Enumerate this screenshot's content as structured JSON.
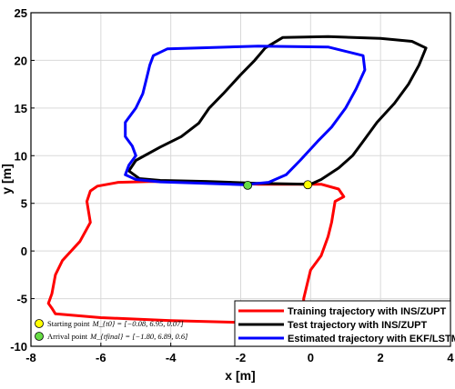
{
  "chart_data": {
    "type": "line",
    "xlabel": "x [m]",
    "ylabel": "y [m]",
    "xlim": [
      -8,
      4
    ],
    "ylim": [
      -10,
      25
    ],
    "xticks": [
      -8,
      -6,
      -4,
      -2,
      0,
      2,
      4
    ],
    "yticks": [
      -10,
      -5,
      0,
      5,
      10,
      15,
      20,
      25
    ],
    "grid": true,
    "legend_position": "bottom-right",
    "series": [
      {
        "name": "Training trajectory with INS/ZUPT",
        "color": "#ff0000",
        "points": [
          [
            0.0,
            7.0
          ],
          [
            -1.5,
            7.0
          ],
          [
            -3.0,
            7.2
          ],
          [
            -4.5,
            7.3
          ],
          [
            -5.5,
            7.2
          ],
          [
            -6.1,
            6.8
          ],
          [
            -6.3,
            6.3
          ],
          [
            -6.4,
            5.2
          ],
          [
            -6.3,
            3.0
          ],
          [
            -6.6,
            1.0
          ],
          [
            -7.1,
            -1.0
          ],
          [
            -7.3,
            -2.5
          ],
          [
            -7.4,
            -4.5
          ],
          [
            -7.5,
            -5.5
          ],
          [
            -7.4,
            -6.0
          ],
          [
            -7.3,
            -6.6
          ],
          [
            -6.0,
            -7.0
          ],
          [
            -4.0,
            -7.3
          ],
          [
            -2.0,
            -7.5
          ],
          [
            -0.3,
            -7.6
          ],
          [
            -0.2,
            -6.5
          ],
          [
            -0.2,
            -5.0
          ],
          [
            -0.1,
            -3.5
          ],
          [
            0.0,
            -2.0
          ],
          [
            0.3,
            -0.5
          ],
          [
            0.4,
            0.5
          ],
          [
            0.5,
            1.5
          ],
          [
            0.6,
            3.0
          ],
          [
            0.7,
            5.2
          ],
          [
            0.95,
            5.7
          ],
          [
            0.8,
            6.5
          ],
          [
            0.3,
            7.0
          ],
          [
            0.0,
            7.0
          ]
        ]
      },
      {
        "name": "Test trajectory with INS/ZUPT",
        "color": "#000000",
        "points": [
          [
            0.0,
            7.0
          ],
          [
            -1.5,
            7.1
          ],
          [
            -3.0,
            7.3
          ],
          [
            -4.3,
            7.4
          ],
          [
            -4.9,
            7.6
          ],
          [
            -5.2,
            8.4
          ],
          [
            -5.0,
            9.5
          ],
          [
            -4.3,
            10.9
          ],
          [
            -3.7,
            12.0
          ],
          [
            -3.2,
            13.4
          ],
          [
            -2.9,
            15.0
          ],
          [
            -2.5,
            16.5
          ],
          [
            -2.0,
            18.5
          ],
          [
            -1.6,
            20.0
          ],
          [
            -1.3,
            21.3
          ],
          [
            -0.8,
            22.4
          ],
          [
            0.5,
            22.5
          ],
          [
            2.0,
            22.3
          ],
          [
            2.9,
            22.0
          ],
          [
            3.3,
            21.3
          ],
          [
            3.1,
            19.5
          ],
          [
            2.8,
            17.5
          ],
          [
            2.4,
            15.5
          ],
          [
            1.9,
            13.5
          ],
          [
            1.5,
            11.5
          ],
          [
            1.2,
            10.0
          ],
          [
            0.8,
            8.7
          ],
          [
            0.3,
            7.5
          ],
          [
            0.0,
            7.0
          ]
        ]
      },
      {
        "name": "Estimated trajectory with EKF/LSTM",
        "color": "#0000ff",
        "points": [
          [
            -1.9,
            6.95
          ],
          [
            -3.0,
            7.1
          ],
          [
            -4.3,
            7.25
          ],
          [
            -5.0,
            7.5
          ],
          [
            -5.3,
            8.0
          ],
          [
            -5.2,
            9.0
          ],
          [
            -5.0,
            10.0
          ],
          [
            -5.1,
            11.0
          ],
          [
            -5.3,
            12.0
          ],
          [
            -5.3,
            13.5
          ],
          [
            -5.0,
            15.0
          ],
          [
            -4.8,
            16.5
          ],
          [
            -4.7,
            18.0
          ],
          [
            -4.6,
            19.5
          ],
          [
            -4.5,
            20.5
          ],
          [
            -4.1,
            21.2
          ],
          [
            -3.2,
            21.3
          ],
          [
            -1.5,
            21.5
          ],
          [
            0.5,
            21.4
          ],
          [
            1.5,
            20.5
          ],
          [
            1.55,
            19.0
          ],
          [
            1.3,
            17.0
          ],
          [
            1.0,
            15.0
          ],
          [
            0.6,
            13.0
          ],
          [
            0.2,
            11.5
          ],
          [
            -0.3,
            9.5
          ],
          [
            -0.7,
            8.0
          ],
          [
            -1.2,
            7.2
          ],
          [
            -1.9,
            6.95
          ]
        ]
      }
    ],
    "markers": [
      {
        "name": "Starting point",
        "color": "#ffff00",
        "x": -0.08,
        "y": 6.95,
        "label": "Starting point",
        "math": "M_{t0} = [−0.08,  6.95,  0.07]"
      },
      {
        "name": "Arrival point",
        "color": "#66dd44",
        "x": -1.8,
        "y": 6.89,
        "label": "Arrival point",
        "math": "M_{tfinal} = [−1.80,  6.89,  0.6]"
      }
    ]
  }
}
